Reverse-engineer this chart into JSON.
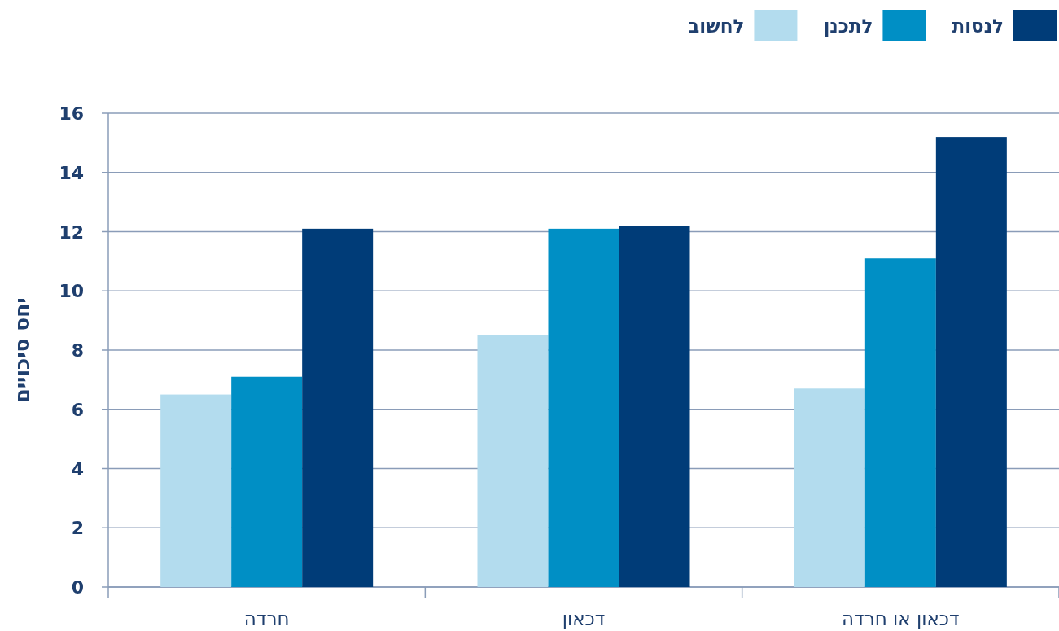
{
  "chart_data": {
    "type": "bar",
    "ylabel": "יחס סיכויים",
    "categories": [
      "חרדה",
      "דכאון",
      "דכאון או חרדה"
    ],
    "series": [
      {
        "name": "לחשוב",
        "color": "#b3dcee",
        "values": [
          6.5,
          8.5,
          6.7
        ]
      },
      {
        "name": "לתכנן",
        "color": "#008fc5",
        "values": [
          7.1,
          12.1,
          11.1
        ]
      },
      {
        "name": "לנסות",
        "color": "#003c78",
        "values": [
          12.1,
          12.2,
          15.2
        ]
      }
    ],
    "ylim": [
      0,
      16
    ],
    "yticks": [
      0,
      2,
      4,
      6,
      8,
      10,
      12,
      14,
      16
    ],
    "grid": "y",
    "legend": "top right"
  }
}
